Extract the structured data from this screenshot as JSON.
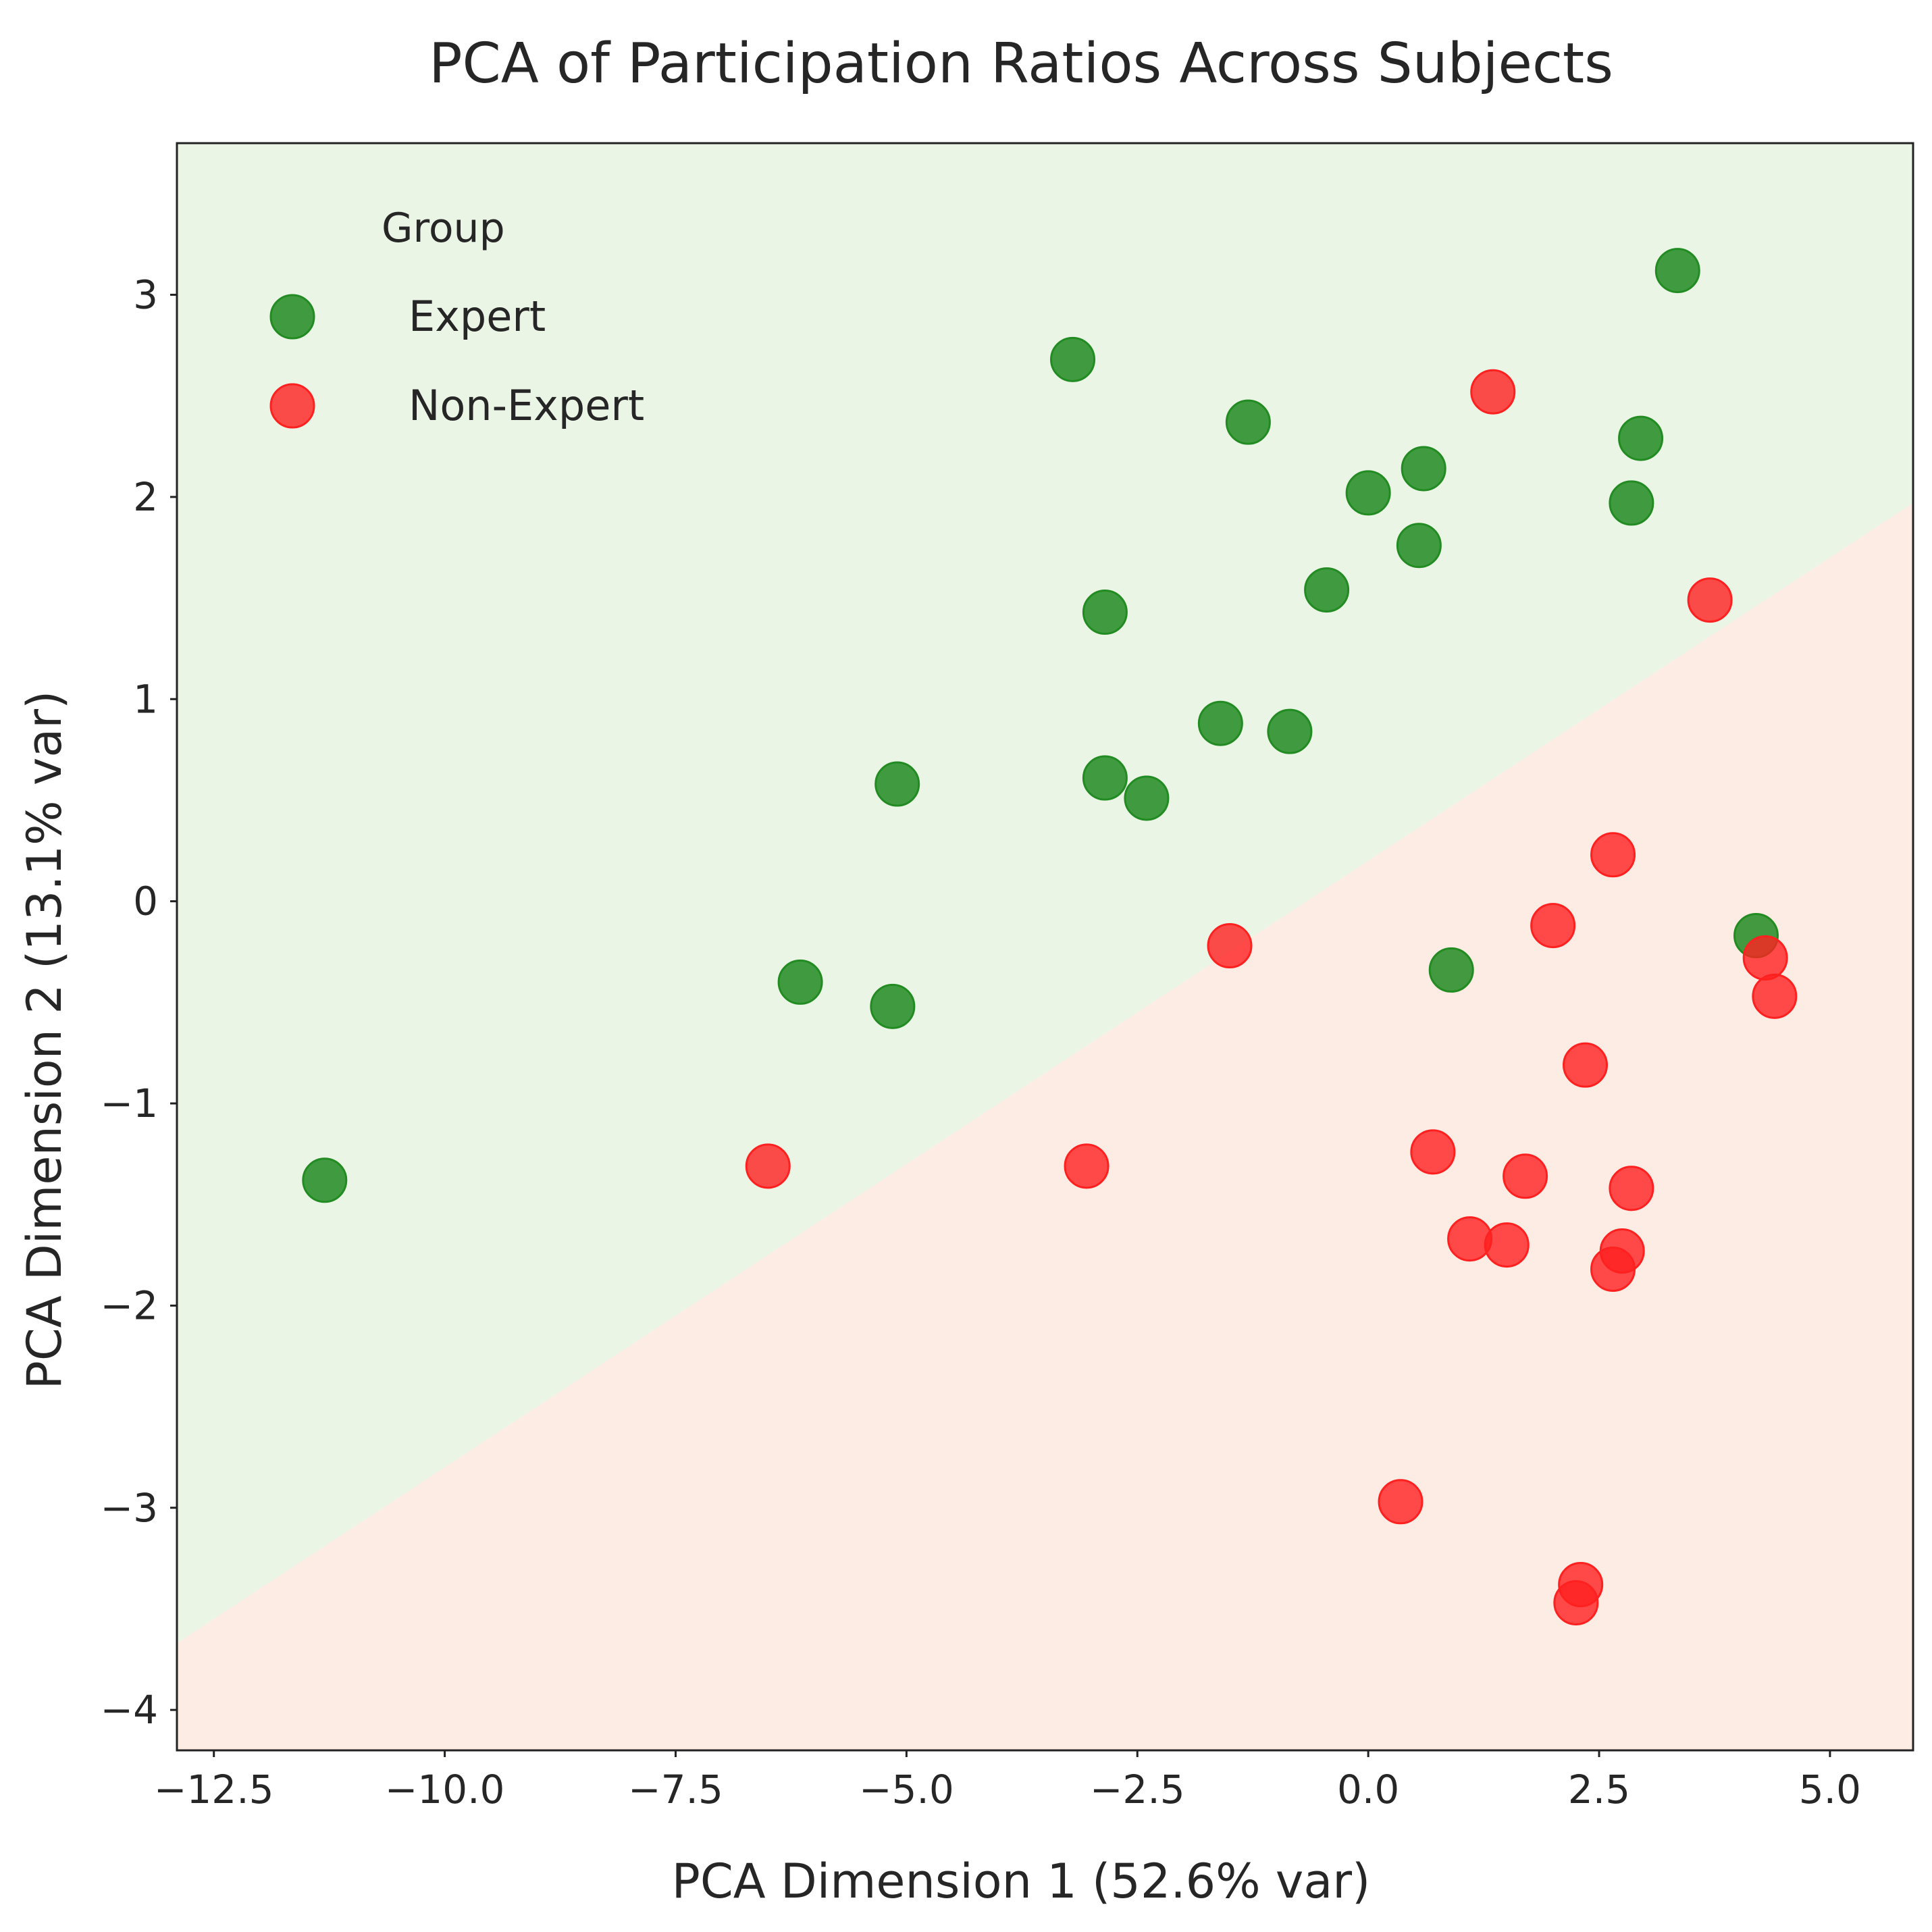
{
  "chart_data": {
    "type": "scatter",
    "title": "PCA of Participation Ratios Across Subjects",
    "xlabel": "PCA Dimension 1 (52.6% var)",
    "ylabel": "PCA Dimension 2 (13.1% var)",
    "xlim": [
      -12.9,
      5.9
    ],
    "ylim": [
      -4.2,
      3.75
    ],
    "xticks": [
      -12.5,
      -10.0,
      -7.5,
      -5.0,
      -2.5,
      0.0,
      2.5,
      5.0
    ],
    "xtick_labels": [
      "−12.5",
      "−10.0",
      "−7.5",
      "−5.0",
      "−2.5",
      "0.0",
      "2.5",
      "5.0"
    ],
    "yticks": [
      -4,
      -3,
      -2,
      -1,
      0,
      1,
      2,
      3
    ],
    "ytick_labels": [
      "−4",
      "−3",
      "−2",
      "−1",
      "0",
      "1",
      "2",
      "3"
    ],
    "grid": false,
    "legend": {
      "title": "Group",
      "placement": "top-left",
      "entries": [
        "Expert",
        "Non-Expert"
      ]
    },
    "decision_boundary": {
      "line": [
        [
          -12.9,
          -3.67
        ],
        [
          5.9,
          1.97
        ]
      ],
      "region_above": "Expert",
      "region_below": "Non-Expert",
      "region_colors": {
        "Expert": "#ebf5e6",
        "Non-Expert": "#fdece4"
      }
    },
    "series": [
      {
        "name": "Expert",
        "color": "#228b22",
        "points": [
          [
            -11.3,
            -1.38
          ],
          [
            -6.15,
            -0.4
          ],
          [
            -5.15,
            -0.52
          ],
          [
            -5.1,
            0.58
          ],
          [
            -3.2,
            2.68
          ],
          [
            -2.85,
            1.43
          ],
          [
            -2.85,
            0.61
          ],
          [
            -2.4,
            0.51
          ],
          [
            -1.6,
            0.88
          ],
          [
            -1.3,
            2.37
          ],
          [
            -0.85,
            0.84
          ],
          [
            -0.45,
            1.54
          ],
          [
            0.0,
            2.02
          ],
          [
            0.55,
            1.76
          ],
          [
            0.6,
            2.14
          ],
          [
            0.9,
            -0.34
          ],
          [
            2.85,
            1.97
          ],
          [
            2.95,
            2.29
          ],
          [
            3.35,
            3.12
          ],
          [
            4.2,
            -0.17
          ]
        ]
      },
      {
        "name": "Non-Expert",
        "color": "#ff2020",
        "points": [
          [
            -6.5,
            -1.31
          ],
          [
            -3.05,
            -1.31
          ],
          [
            -1.5,
            -0.22
          ],
          [
            0.35,
            -2.97
          ],
          [
            0.7,
            -1.24
          ],
          [
            1.1,
            -1.67
          ],
          [
            1.35,
            2.52
          ],
          [
            1.5,
            -1.7
          ],
          [
            1.7,
            -1.36
          ],
          [
            2.0,
            -0.12
          ],
          [
            2.25,
            -3.47
          ],
          [
            2.3,
            -3.38
          ],
          [
            2.35,
            -0.81
          ],
          [
            2.65,
            -1.82
          ],
          [
            2.65,
            0.23
          ],
          [
            2.75,
            -1.73
          ],
          [
            2.85,
            -1.42
          ],
          [
            3.7,
            1.49
          ],
          [
            4.3,
            -0.28
          ],
          [
            4.4,
            -0.47
          ]
        ]
      }
    ]
  }
}
